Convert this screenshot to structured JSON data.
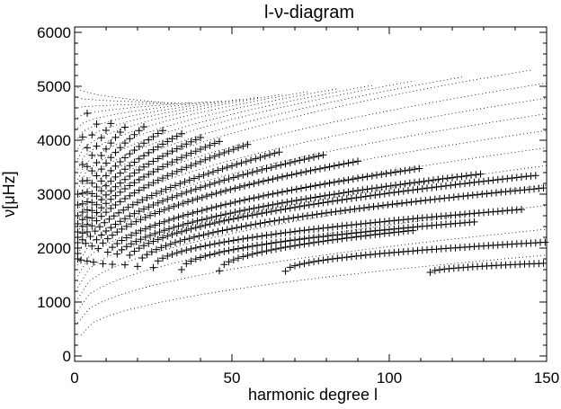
{
  "chart_data": {
    "type": "scatter",
    "title": "l-ν-diagram",
    "xlabel": "harmonic degree l",
    "ylabel": "ν[μHz]",
    "xlim": [
      0,
      150
    ],
    "ylim": [
      -100,
      6100
    ],
    "x_ticks": [
      0,
      50,
      100,
      150
    ],
    "y_ticks": [
      0,
      1000,
      2000,
      3000,
      4000,
      5000,
      6000
    ],
    "grid": false,
    "legend": "none",
    "series": [
      {
        "style": "dotted-line",
        "color": "#000000",
        "ridges": [
          {
            "x": [
              2,
              150
            ],
            "y": [
              380,
              1870
            ]
          },
          {
            "x": [
              1,
              150
            ],
            "y": [
              610,
              2350
            ]
          },
          {
            "x": [
              1,
              150
            ],
            "y": [
              840,
              2790
            ]
          },
          {
            "x": [
              1,
              150
            ],
            "y": [
              1060,
              3170
            ]
          },
          {
            "x": [
              1,
              150
            ],
            "y": [
              1270,
              3530
            ]
          },
          {
            "x": [
              1,
              150
            ],
            "y": [
              1480,
              3860
            ]
          },
          {
            "x": [
              1,
              150
            ],
            "y": [
              1690,
              4180
            ]
          },
          {
            "x": [
              1,
              150
            ],
            "y": [
              1890,
              4490
            ]
          },
          {
            "x": [
              1,
              150
            ],
            "y": [
              2090,
              4780
            ]
          },
          {
            "x": [
              1,
              150
            ],
            "y": [
              2290,
              5060
            ]
          },
          {
            "x": [
              1,
              145
            ],
            "y": [
              2490,
              5300
            ]
          },
          {
            "x": [
              1,
              124
            ],
            "y": [
              2690,
              5180
            ]
          },
          {
            "x": [
              1,
              108
            ],
            "y": [
              2890,
              5100
            ]
          },
          {
            "x": [
              1,
              95
            ],
            "y": [
              3080,
              5020
            ]
          },
          {
            "x": [
              1,
              84
            ],
            "y": [
              3270,
              4960
            ]
          },
          {
            "x": [
              1,
              74
            ],
            "y": [
              3460,
              4900
            ]
          },
          {
            "x": [
              1,
              66
            ],
            "y": [
              3650,
              4850
            ]
          },
          {
            "x": [
              1,
              59
            ],
            "y": [
              3840,
              4800
            ]
          },
          {
            "x": [
              1,
              53
            ],
            "y": [
              4030,
              4760
            ]
          },
          {
            "x": [
              1,
              47
            ],
            "y": [
              4220,
              4730
            ]
          },
          {
            "x": [
              1,
              42
            ],
            "y": [
              4410,
              4710
            ]
          },
          {
            "x": [
              1,
              37
            ],
            "y": [
              4600,
              4690
            ]
          },
          {
            "x": [
              1,
              32
            ],
            "y": [
              4790,
              4690
            ]
          },
          {
            "x": [
              1,
              28
            ],
            "y": [
              4980,
              4700
            ]
          }
        ]
      },
      {
        "style": "plus-markers",
        "color": "#000000",
        "ridges": [
          {
            "x": [
              113,
              150
            ],
            "y": [
              1550,
              1720
            ]
          },
          {
            "x": [
              67,
              150
            ],
            "y": [
              1570,
              2110
            ]
          },
          {
            "x": [
              46,
              108
            ],
            "y": [
              1580,
              2330
            ]
          },
          {
            "x": [
              34,
              128
            ],
            "y": [
              1600,
              2490
            ]
          },
          {
            "x": [
              25,
              143
            ],
            "y": [
              1640,
              2720
            ]
          },
          {
            "x": [
              20,
              150
            ],
            "y": [
              1660,
              3120
            ]
          },
          {
            "x": [
              16,
              147
            ],
            "y": [
              1690,
              3350
            ]
          },
          {
            "x": [
              12,
              130
            ],
            "y": [
              1700,
              3380
            ]
          },
          {
            "x": [
              9,
              110
            ],
            "y": [
              1710,
              3480
            ]
          },
          {
            "x": [
              6,
              90
            ],
            "y": [
              1740,
              3610
            ]
          },
          {
            "x": [
              4,
              80
            ],
            "y": [
              1760,
              3740
            ]
          },
          {
            "x": [
              2,
              65
            ],
            "y": [
              1780,
              3780
            ]
          },
          {
            "x": [
              1,
              55
            ],
            "y": [
              1800,
              3920
            ]
          },
          {
            "x": [
              1,
              47
            ],
            "y": [
              1900,
              4000
            ]
          },
          {
            "x": [
              1,
              40
            ],
            "y": [
              2000,
              4050
            ]
          },
          {
            "x": [
              1,
              34
            ],
            "y": [
              2100,
              4120
            ]
          },
          {
            "x": [
              1,
              28
            ],
            "y": [
              2200,
              4180
            ]
          },
          {
            "x": [
              1,
              22
            ],
            "y": [
              2300,
              4250
            ]
          },
          {
            "x": [
              1,
              17
            ],
            "y": [
              2450,
              4300
            ]
          },
          {
            "x": [
              1,
              12
            ],
            "y": [
              2600,
              4350
            ]
          },
          {
            "x": [
              1,
              8
            ],
            "y": [
              2800,
              4420
            ]
          },
          {
            "x": [
              1,
              4
            ],
            "y": [
              3000,
              4500
            ]
          }
        ]
      }
    ]
  }
}
